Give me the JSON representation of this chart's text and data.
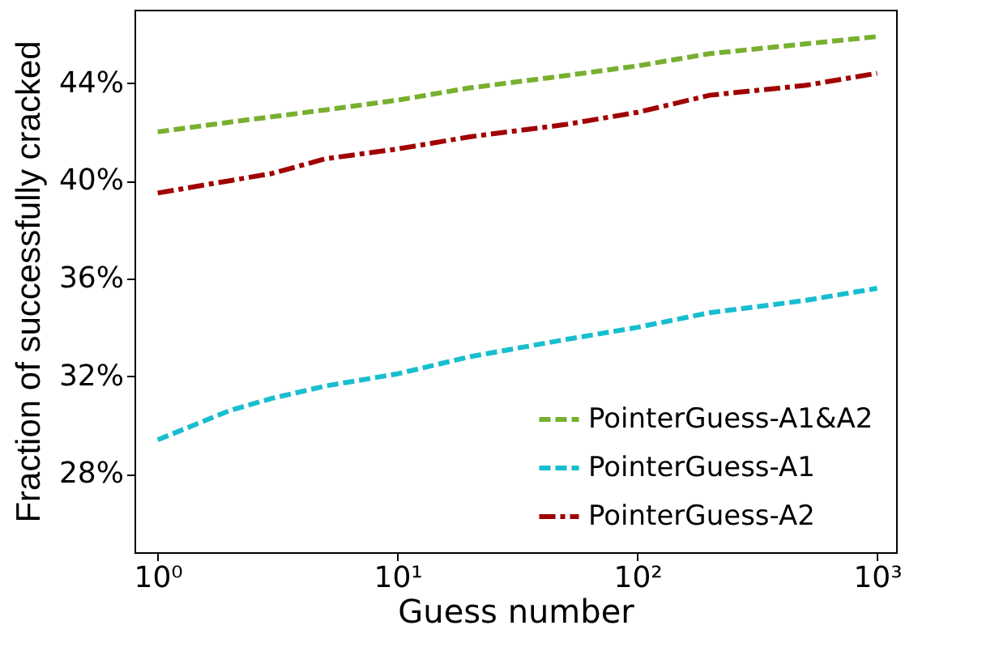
{
  "chart_data": {
    "type": "line",
    "xlabel": "Guess number",
    "ylabel": "Fraction of successfully cracked",
    "log": "x",
    "xlim": [
      0.8,
      1200
    ],
    "xticks": [
      {
        "value": 1,
        "label": "10⁰"
      },
      {
        "value": 10,
        "label": "10¹"
      },
      {
        "value": 100,
        "label": "10²"
      },
      {
        "value": 1000,
        "label": "10³"
      }
    ],
    "ylim": [
      24.8,
      47
    ],
    "yticks": [
      {
        "value": 28,
        "label": "28%"
      },
      {
        "value": 32,
        "label": "32%"
      },
      {
        "value": 36,
        "label": "36%"
      },
      {
        "value": 40,
        "label": "40%"
      },
      {
        "value": 44,
        "label": "44%"
      }
    ],
    "grid": false,
    "legend": "bottom right",
    "marker": "none",
    "series": [
      {
        "name": "PointerGuess-A1&A2",
        "color": "#77b02f",
        "line_style": "dashed",
        "x": [
          1,
          2,
          5,
          10,
          20,
          50,
          100,
          200,
          500,
          1000
        ],
        "values": [
          42.0,
          42.4,
          42.9,
          43.3,
          43.8,
          44.3,
          44.7,
          45.2,
          45.6,
          45.9
        ]
      },
      {
        "name": "PointerGuess-A1",
        "color": "#17becf",
        "line_style": "dashed",
        "x": [
          1,
          2,
          3,
          5,
          10,
          20,
          50,
          100,
          200,
          500,
          1000
        ],
        "values": [
          29.4,
          30.6,
          31.1,
          31.6,
          32.1,
          32.8,
          33.5,
          34.0,
          34.6,
          35.1,
          35.6
        ]
      },
      {
        "name": "PointerGuess-A2",
        "color": "#a00000",
        "line_style": "dashdot",
        "x": [
          1,
          3,
          5,
          10,
          20,
          50,
          100,
          200,
          500,
          1000
        ],
        "values": [
          39.5,
          40.3,
          40.9,
          41.3,
          41.8,
          42.3,
          42.8,
          43.5,
          43.9,
          44.4
        ]
      }
    ]
  }
}
